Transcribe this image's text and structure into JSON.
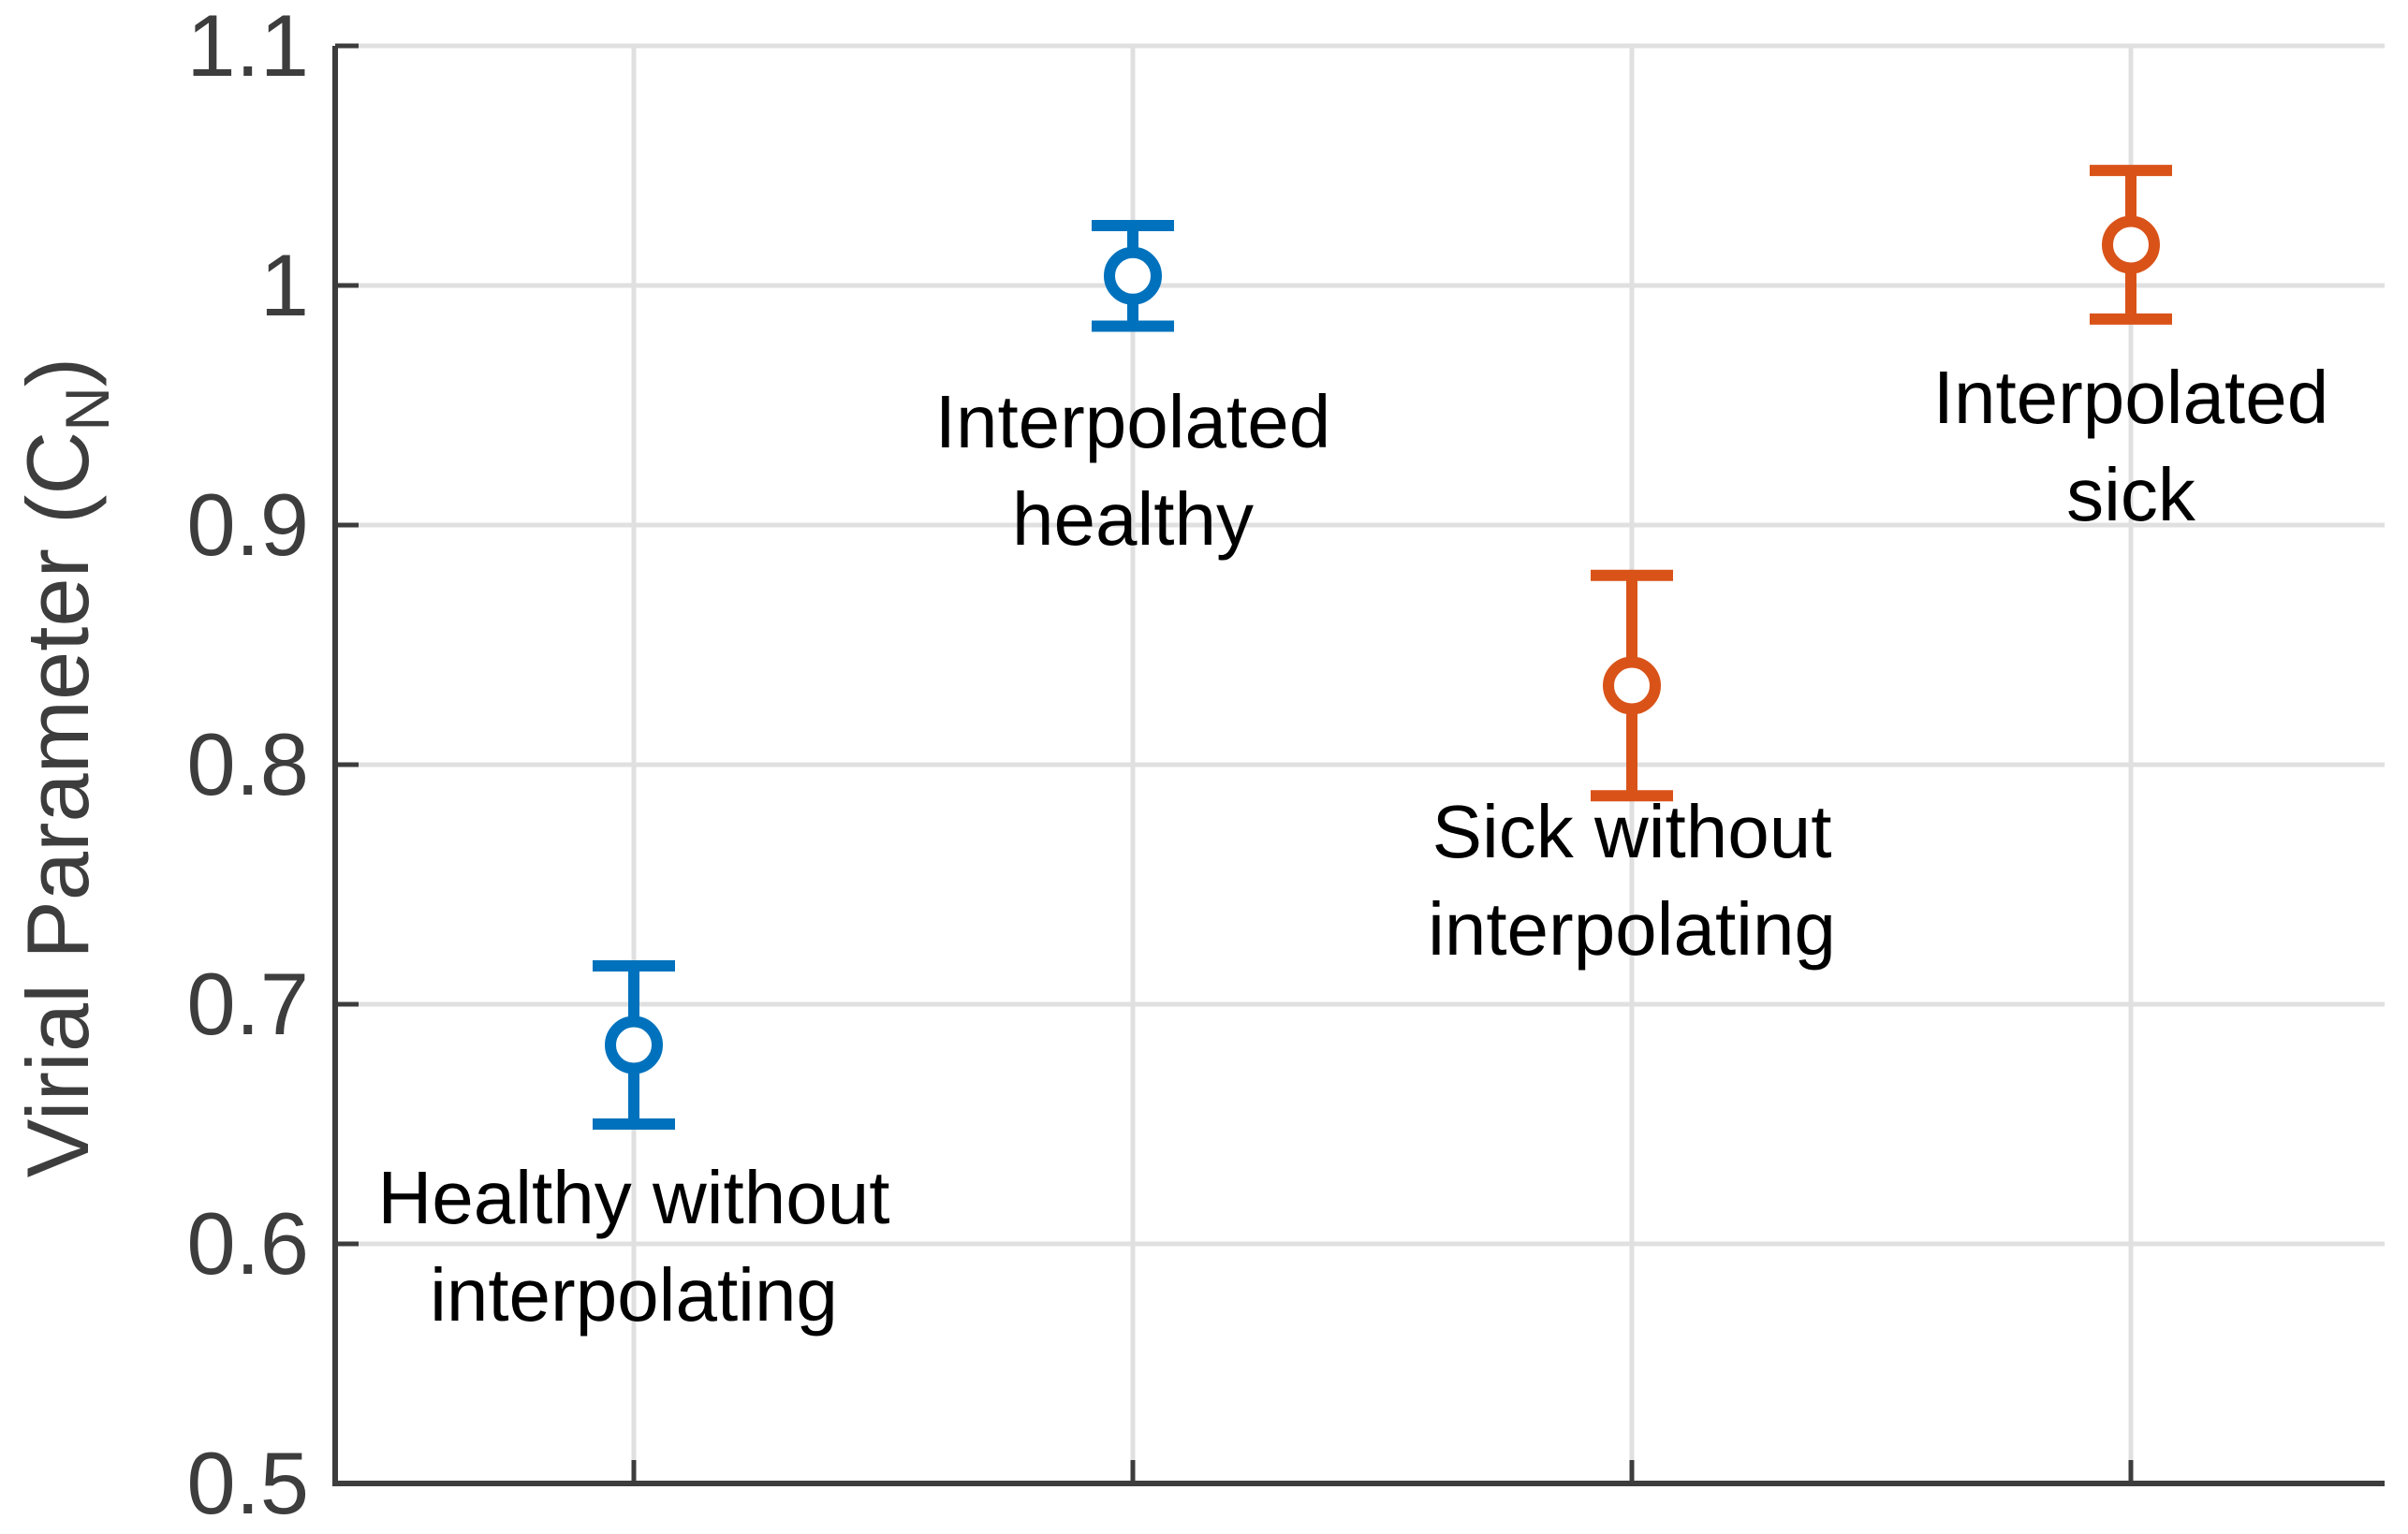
{
  "chart_data": {
    "type": "scatter",
    "subtype": "errorbar",
    "title": "",
    "xlabel": "",
    "ylabel": "Virial Parameter (C_N)",
    "ylabel_parts": {
      "pre": "Virial Parameter (C",
      "sub": "N",
      "post": ")"
    },
    "ylim": [
      0.5,
      1.1
    ],
    "xlim": [
      0.4,
      4.6
    ],
    "grid": "on",
    "legend": "none",
    "yticks": [
      {
        "value": 1.1,
        "label": "1.1"
      },
      {
        "value": 1.0,
        "label": "1"
      },
      {
        "value": 0.9,
        "label": "0.9"
      },
      {
        "value": 0.8,
        "label": "0.8"
      },
      {
        "value": 0.7,
        "label": "0.7"
      },
      {
        "value": 0.6,
        "label": "0.6"
      },
      {
        "value": 0.5,
        "label": "0.5"
      }
    ],
    "categories": [
      "Healthy without interpolating",
      "Interpolated healthy",
      "Sick without interpolating",
      "Interpolated sick"
    ],
    "series": [
      {
        "name": "healthy",
        "color": "#0072BD",
        "points": [
          {
            "x": 1,
            "y": 0.683,
            "err_plus": 0.033,
            "err_minus": 0.033
          },
          {
            "x": 2,
            "y": 1.004,
            "err_plus": 0.021,
            "err_minus": 0.021
          }
        ]
      },
      {
        "name": "sick",
        "color": "#D95319",
        "points": [
          {
            "x": 3,
            "y": 0.833,
            "err_plus": 0.046,
            "err_minus": 0.046
          },
          {
            "x": 4,
            "y": 1.017,
            "err_plus": 0.031,
            "err_minus": 0.031
          }
        ]
      }
    ],
    "annotations": [
      {
        "x": 1,
        "y": 0.619,
        "line1": "Healthy without",
        "line2": "interpolating"
      },
      {
        "x": 2,
        "y": 0.943,
        "line1": "Interpolated",
        "line2": "healthy"
      },
      {
        "x": 3,
        "y": 0.772,
        "line1": "Sick without",
        "line2": "interpolating"
      },
      {
        "x": 4,
        "y": 0.953,
        "line1": "Interpolated",
        "line2": "sick"
      }
    ],
    "colors": {
      "axis": "#3d3d3d",
      "grid": "#e0e0e0",
      "tick_label": "#3d3d3d",
      "annotation_text": "#000000",
      "background": "#ffffff",
      "series_blue": "#0072BD",
      "series_orange": "#D95319"
    }
  }
}
